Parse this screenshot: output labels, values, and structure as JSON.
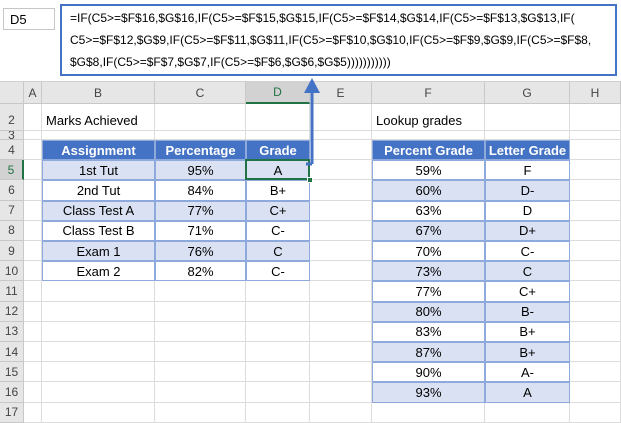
{
  "name_box": "D5",
  "formula": {
    "lines": [
      "=IF(C5>=$F$16,$G$16,IF(C5>=$F$15,$G$15,IF(C5>=$F$14,$G$14,IF(C5>=$F$13,$G$13,IF(",
      "C5>=$F$12,$G$9,IF(C5>=$F$11,$G$11,IF(C5>=$F$10,$G$10,IF(C5>=$F$9,$G$9,IF(C5>=$F$8,",
      "$G$8,IF(C5>=$F$7,$G$7,IF(C5>=$F$6,$G$6,$G$5)))))))))))"
    ]
  },
  "sheet": {
    "columns": [
      "A",
      "B",
      "C",
      "D",
      "E",
      "F",
      "G",
      "H"
    ],
    "rows": [
      2,
      3,
      4,
      5,
      6,
      7,
      8,
      9,
      10,
      11,
      12,
      13,
      14,
      15,
      16,
      17
    ]
  },
  "table1": {
    "title": "Marks Achieved",
    "header": [
      "Assignment",
      "Percentage",
      "Grade"
    ],
    "rows": [
      [
        "1st Tut",
        "95%",
        "A"
      ],
      [
        "2nd Tut",
        "84%",
        "B+"
      ],
      [
        "Class Test A",
        "77%",
        "C+"
      ],
      [
        "Class Test B",
        "71%",
        "C-"
      ],
      [
        "Exam 1",
        "76%",
        "C"
      ],
      [
        "Exam 2",
        "82%",
        "C-"
      ]
    ]
  },
  "table2": {
    "title": "Lookup grades",
    "header": [
      "Percent Grade",
      "Letter Grade"
    ],
    "rows": [
      [
        "59%",
        "F"
      ],
      [
        "60%",
        "D-"
      ],
      [
        "63%",
        "D"
      ],
      [
        "67%",
        "D+"
      ],
      [
        "70%",
        "C-"
      ],
      [
        "73%",
        "C"
      ],
      [
        "77%",
        "C+"
      ],
      [
        "80%",
        "B-"
      ],
      [
        "83%",
        "B+"
      ],
      [
        "87%",
        "B+"
      ],
      [
        "90%",
        "A-"
      ],
      [
        "93%",
        "A"
      ]
    ]
  }
}
